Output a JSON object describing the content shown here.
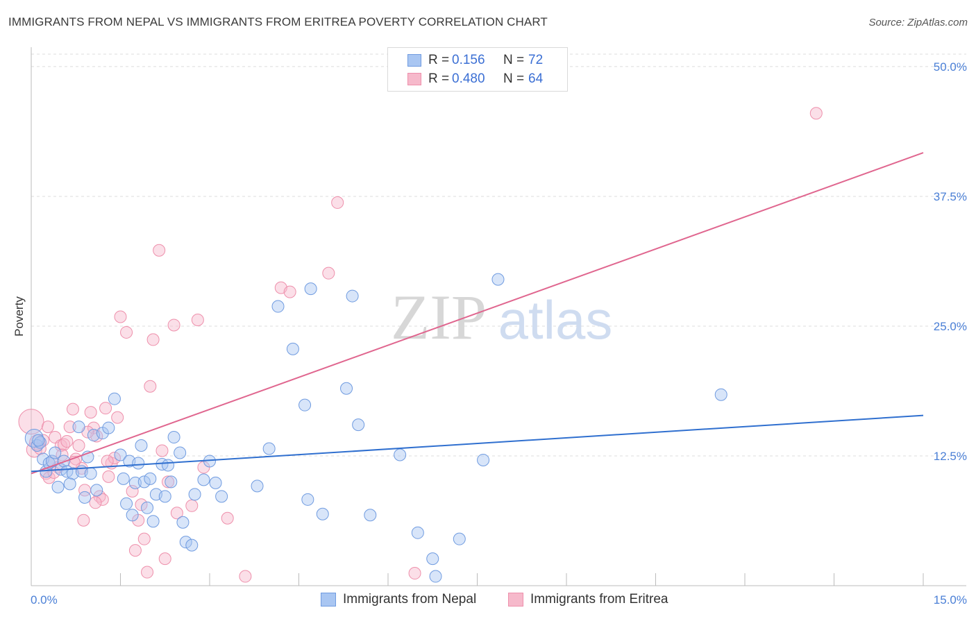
{
  "title": "IMMIGRANTS FROM NEPAL VS IMMIGRANTS FROM ERITREA POVERTY CORRELATION CHART",
  "source": "Source: ZipAtlas.com",
  "watermark": {
    "zip": "ZIP",
    "atlas": "atlas"
  },
  "colors": {
    "nepal_fill": "#a9c6f2",
    "nepal_stroke": "#6f9be0",
    "nepal_line": "#2f6fcf",
    "eritrea_fill": "#f6b9cb",
    "eritrea_stroke": "#ee8fab",
    "eritrea_line": "#e0668f",
    "tick_text": "#4a7fd6",
    "grid": "#dcdcdc"
  },
  "legend": {
    "rows": [
      {
        "r_label": "R =",
        "r_value": "0.156",
        "n_label": "N =",
        "n_value": "72"
      },
      {
        "r_label": "R =",
        "r_value": "0.480",
        "n_label": "N =",
        "n_value": "64"
      }
    ]
  },
  "bottom_legend": {
    "nepal": "Immigrants from Nepal",
    "eritrea": "Immigrants from Eritrea"
  },
  "chart_data": {
    "type": "scatter",
    "title": "IMMIGRANTS FROM NEPAL VS IMMIGRANTS FROM ERITREA POVERTY CORRELATION CHART",
    "xlabel": "",
    "ylabel": "Poverty",
    "xlim": [
      0,
      15
    ],
    "ylim": [
      0,
      52
    ],
    "x_tick_labels": [
      {
        "value": 0,
        "label": "0.0%"
      },
      {
        "value": 15,
        "label": "15.0%"
      }
    ],
    "y_tick_labels": [
      {
        "value": 12.5,
        "label": "12.5%"
      },
      {
        "value": 25,
        "label": "25.0%"
      },
      {
        "value": 37.5,
        "label": "37.5%"
      },
      {
        "value": 50,
        "label": "50.0%"
      }
    ],
    "series": [
      {
        "name": "Immigrants from Nepal",
        "trend": {
          "x": [
            0,
            15
          ],
          "y": [
            11.0,
            16.4
          ]
        },
        "points": [
          [
            0.05,
            14.2
          ],
          [
            0.1,
            13.5
          ],
          [
            0.15,
            13.8
          ],
          [
            0.2,
            12.2
          ],
          [
            0.25,
            11.0
          ],
          [
            0.3,
            11.8
          ],
          [
            0.35,
            12.0
          ],
          [
            0.4,
            12.8
          ],
          [
            0.45,
            9.5
          ],
          [
            0.5,
            11.2
          ],
          [
            0.55,
            12.0
          ],
          [
            0.6,
            11.0
          ],
          [
            0.7,
            10.8
          ],
          [
            0.8,
            15.3
          ],
          [
            0.85,
            11.0
          ],
          [
            0.9,
            8.5
          ],
          [
            0.95,
            12.4
          ],
          [
            1.0,
            10.8
          ],
          [
            1.05,
            14.5
          ],
          [
            1.1,
            9.2
          ],
          [
            1.2,
            14.7
          ],
          [
            1.3,
            15.2
          ],
          [
            1.4,
            18.0
          ],
          [
            1.5,
            12.6
          ],
          [
            1.55,
            10.3
          ],
          [
            1.6,
            7.9
          ],
          [
            1.65,
            12.0
          ],
          [
            1.7,
            6.8
          ],
          [
            1.75,
            9.9
          ],
          [
            1.8,
            11.8
          ],
          [
            1.85,
            13.5
          ],
          [
            1.9,
            10.0
          ],
          [
            1.95,
            7.5
          ],
          [
            2.0,
            10.3
          ],
          [
            2.05,
            6.2
          ],
          [
            2.1,
            8.8
          ],
          [
            2.2,
            11.7
          ],
          [
            2.25,
            8.6
          ],
          [
            2.3,
            11.6
          ],
          [
            2.35,
            10.0
          ],
          [
            2.4,
            14.3
          ],
          [
            2.5,
            12.8
          ],
          [
            2.55,
            6.1
          ],
          [
            2.6,
            4.2
          ],
          [
            2.7,
            3.9
          ],
          [
            2.75,
            8.8
          ],
          [
            2.9,
            10.2
          ],
          [
            3.0,
            12.0
          ],
          [
            3.1,
            9.9
          ],
          [
            3.2,
            8.6
          ],
          [
            3.8,
            9.6
          ],
          [
            4.0,
            13.2
          ],
          [
            4.15,
            26.9
          ],
          [
            4.4,
            22.8
          ],
          [
            4.6,
            17.4
          ],
          [
            4.65,
            8.3
          ],
          [
            4.7,
            28.6
          ],
          [
            4.9,
            6.9
          ],
          [
            5.3,
            19.0
          ],
          [
            5.4,
            27.9
          ],
          [
            5.5,
            15.5
          ],
          [
            5.7,
            6.8
          ],
          [
            6.2,
            12.6
          ],
          [
            6.5,
            5.1
          ],
          [
            6.75,
            2.6
          ],
          [
            6.8,
            0.9
          ],
          [
            7.2,
            4.5
          ],
          [
            7.6,
            12.1
          ],
          [
            7.85,
            29.5
          ],
          [
            11.6,
            18.4
          ],
          [
            0.12,
            14.0
          ],
          [
            0.65,
            9.8
          ]
        ]
      },
      {
        "name": "Immigrants from Eritrea",
        "trend": {
          "x": [
            0,
            15
          ],
          "y": [
            10.8,
            41.7
          ]
        },
        "points": [
          [
            0.0,
            15.8
          ],
          [
            0.05,
            13.1
          ],
          [
            0.1,
            13.8
          ],
          [
            0.2,
            14.0
          ],
          [
            0.25,
            10.8
          ],
          [
            0.3,
            10.4
          ],
          [
            0.35,
            12.0
          ],
          [
            0.4,
            14.3
          ],
          [
            0.45,
            11.4
          ],
          [
            0.5,
            13.5
          ],
          [
            0.55,
            13.6
          ],
          [
            0.6,
            13.9
          ],
          [
            0.65,
            15.3
          ],
          [
            0.7,
            17.0
          ],
          [
            0.75,
            12.2
          ],
          [
            0.8,
            13.5
          ],
          [
            0.85,
            11.3
          ],
          [
            0.9,
            9.2
          ],
          [
            1.0,
            16.7
          ],
          [
            1.05,
            15.2
          ],
          [
            1.1,
            14.4
          ],
          [
            1.15,
            8.6
          ],
          [
            1.2,
            8.3
          ],
          [
            1.25,
            17.1
          ],
          [
            1.3,
            10.5
          ],
          [
            1.35,
            11.8
          ],
          [
            1.4,
            12.3
          ],
          [
            1.45,
            16.2
          ],
          [
            1.5,
            25.9
          ],
          [
            1.6,
            24.4
          ],
          [
            1.7,
            9.1
          ],
          [
            1.75,
            3.4
          ],
          [
            1.8,
            6.3
          ],
          [
            1.85,
            7.8
          ],
          [
            1.9,
            4.5
          ],
          [
            1.95,
            1.3
          ],
          [
            2.0,
            19.2
          ],
          [
            2.05,
            23.7
          ],
          [
            2.15,
            32.3
          ],
          [
            2.2,
            13.0
          ],
          [
            2.25,
            2.6
          ],
          [
            2.3,
            10.0
          ],
          [
            2.4,
            25.1
          ],
          [
            2.45,
            7.0
          ],
          [
            2.7,
            7.7
          ],
          [
            2.8,
            25.6
          ],
          [
            2.9,
            11.4
          ],
          [
            3.3,
            6.5
          ],
          [
            3.6,
            0.9
          ],
          [
            4.2,
            28.7
          ],
          [
            4.35,
            28.3
          ],
          [
            5.0,
            30.1
          ],
          [
            5.15,
            36.9
          ],
          [
            6.45,
            1.2
          ],
          [
            13.2,
            45.5
          ],
          [
            0.15,
            13.2
          ],
          [
            0.38,
            10.9
          ],
          [
            0.52,
            12.6
          ],
          [
            0.88,
            6.3
          ],
          [
            1.08,
            8.0
          ],
          [
            0.72,
            11.9
          ],
          [
            1.28,
            12.0
          ],
          [
            0.28,
            15.3
          ],
          [
            0.95,
            14.8
          ]
        ]
      }
    ]
  }
}
